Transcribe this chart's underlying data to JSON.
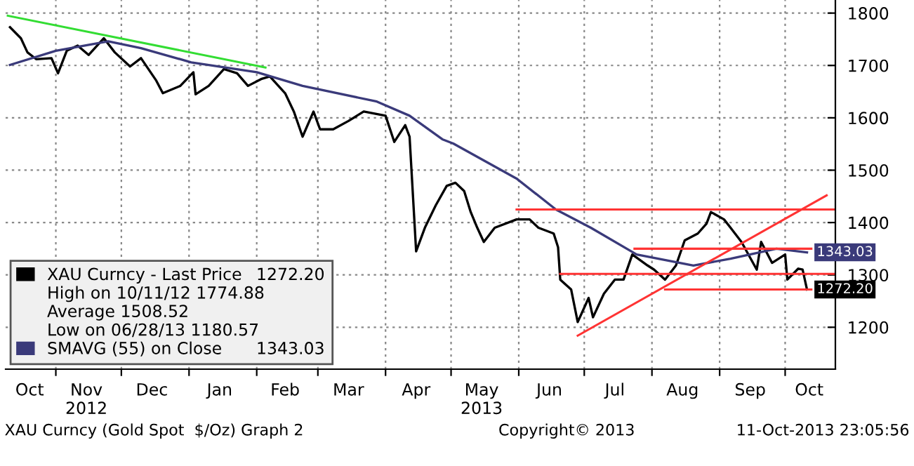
{
  "chart_data": {
    "type": "line",
    "xlim": [
      "2012-10-09",
      "2013-10-24"
    ],
    "ylim": [
      1120,
      1825
    ],
    "yticks": [
      1200,
      1300,
      1400,
      1500,
      1600,
      1700,
      1800
    ],
    "xticks": [
      {
        "value": "2012-10-20",
        "label": "Oct"
      },
      {
        "value": "2012-11-01",
        "label": null
      },
      {
        "value": "2012-11-15",
        "label": "Nov\n2012"
      },
      {
        "value": "2012-12-01",
        "label": null
      },
      {
        "value": "2012-12-15",
        "label": "Dec"
      },
      {
        "value": "2013-01-01",
        "label": null
      },
      {
        "value": "2013-01-15",
        "label": "Jan"
      },
      {
        "value": "2013-02-01",
        "label": null
      },
      {
        "value": "2013-02-14",
        "label": "Feb"
      },
      {
        "value": "2013-03-01",
        "label": null
      },
      {
        "value": "2013-03-15",
        "label": "Mar"
      },
      {
        "value": "2013-04-01",
        "label": null
      },
      {
        "value": "2013-04-15",
        "label": "Apr"
      },
      {
        "value": "2013-05-01",
        "label": null
      },
      {
        "value": "2013-05-15",
        "label": "May\n2013"
      },
      {
        "value": "2013-06-01",
        "label": null
      },
      {
        "value": "2013-06-15",
        "label": "Jun"
      },
      {
        "value": "2013-07-01",
        "label": null
      },
      {
        "value": "2013-07-15",
        "label": "Jul"
      },
      {
        "value": "2013-08-01",
        "label": null
      },
      {
        "value": "2013-08-15",
        "label": "Aug"
      },
      {
        "value": "2013-09-01",
        "label": null
      },
      {
        "value": "2013-09-15",
        "label": "Sep"
      },
      {
        "value": "2013-10-01",
        "label": null
      },
      {
        "value": "2013-10-12",
        "label": "Oct"
      }
    ],
    "grid": true,
    "legend": "bottom left",
    "marker": "none",
    "line_style": "solid",
    "series": [
      {
        "name": "XAU Curncy - Last Price",
        "color": "#000000",
        "x": [
          "2012-10-11",
          "2012-10-16",
          "2012-10-19",
          "2012-10-23",
          "2012-10-30",
          "2012-11-02",
          "2012-11-06",
          "2012-11-11",
          "2012-11-16",
          "2012-11-23",
          "2012-11-28",
          "2012-12-05",
          "2012-12-10",
          "2012-12-17",
          "2012-12-20",
          "2012-12-28",
          "2013-01-03",
          "2013-01-04",
          "2013-01-10",
          "2013-01-17",
          "2013-01-23",
          "2013-01-28",
          "2013-02-03",
          "2013-02-07",
          "2013-02-14",
          "2013-02-18",
          "2013-02-22",
          "2013-02-27",
          "2013-03-02",
          "2013-03-08",
          "2013-03-15",
          "2013-03-22",
          "2013-04-01",
          "2013-04-05",
          "2013-04-10",
          "2013-04-12",
          "2013-04-15",
          "2013-04-19",
          "2013-04-24",
          "2013-04-29",
          "2013-05-03",
          "2013-05-07",
          "2013-05-10",
          "2013-05-13",
          "2013-05-16",
          "2013-05-21",
          "2013-05-31",
          "2013-06-06",
          "2013-06-10",
          "2013-06-17",
          "2013-06-19",
          "2013-06-20",
          "2013-06-25",
          "2013-06-28",
          "2013-07-03",
          "2013-07-05",
          "2013-07-10",
          "2013-07-15",
          "2013-07-19",
          "2013-07-23",
          "2013-07-30",
          "2013-08-02",
          "2013-08-07",
          "2013-08-12",
          "2013-08-16",
          "2013-08-22",
          "2013-08-26",
          "2013-08-28",
          "2013-09-03",
          "2013-09-06",
          "2013-09-11",
          "2013-09-18",
          "2013-09-20",
          "2013-09-25",
          "2013-10-01",
          "2013-10-02",
          "2013-10-07",
          "2013-10-09",
          "2013-10-11"
        ],
        "values": [
          1773,
          1752,
          1725,
          1712,
          1714,
          1685,
          1728,
          1738,
          1720,
          1752,
          1725,
          1698,
          1714,
          1671,
          1647,
          1661,
          1687,
          1645,
          1661,
          1693,
          1685,
          1661,
          1674,
          1679,
          1647,
          1612,
          1564,
          1612,
          1578,
          1578,
          1594,
          1612,
          1604,
          1554,
          1586,
          1564,
          1345,
          1390,
          1433,
          1470,
          1476,
          1460,
          1420,
          1390,
          1363,
          1390,
          1406,
          1406,
          1390,
          1379,
          1353,
          1291,
          1272,
          1210,
          1256,
          1219,
          1264,
          1291,
          1291,
          1339,
          1318,
          1310,
          1291,
          1318,
          1366,
          1379,
          1398,
          1420,
          1406,
          1390,
          1363,
          1310,
          1363,
          1323,
          1339,
          1291,
          1312,
          1310,
          1272.2
        ],
        "value_labels": [
          null,
          null,
          null,
          null,
          null,
          null,
          null,
          null,
          null,
          null,
          null,
          null,
          null,
          null,
          null,
          null,
          null,
          null,
          null,
          null,
          null,
          null,
          null,
          null,
          null,
          null,
          null,
          null,
          null,
          null,
          null,
          null,
          null,
          null,
          null,
          null,
          null,
          null,
          null,
          null,
          null,
          null,
          null,
          null,
          null,
          null,
          null,
          null,
          null,
          null,
          null,
          null,
          null,
          null,
          null,
          null,
          null,
          null,
          null,
          null,
          null,
          null,
          null,
          null,
          null,
          null,
          null,
          null,
          null,
          null,
          null,
          null,
          null,
          null,
          null,
          null,
          null,
          null,
          "1272.20"
        ]
      },
      {
        "name": "SMAVG (55) on Close",
        "color": "#3a3a7a",
        "x": [
          "2012-10-11",
          "2012-11-01",
          "2012-11-25",
          "2012-12-10",
          "2013-01-02",
          "2013-02-01",
          "2013-02-22",
          "2013-03-28",
          "2013-04-12",
          "2013-04-27",
          "2013-05-02",
          "2013-05-31",
          "2013-06-18",
          "2013-07-04",
          "2013-07-25",
          "2013-08-20",
          "2013-09-06",
          "2013-09-27",
          "2013-10-11"
        ],
        "values": [
          1701,
          1728,
          1746,
          1733,
          1706,
          1687,
          1661,
          1631,
          1604,
          1559,
          1551,
          1484,
          1425,
          1390,
          1339,
          1318,
          1331,
          1350,
          1343.03
        ],
        "value_labels": [
          null,
          null,
          null,
          null,
          null,
          null,
          null,
          null,
          null,
          null,
          null,
          null,
          null,
          null,
          null,
          null,
          null,
          null,
          "1343.03"
        ]
      },
      {
        "color": "#33dd33",
        "x": [
          "2012-10-10",
          "2013-02-05"
        ],
        "values": [
          1795,
          1696
        ]
      },
      {
        "color": "#ff3333",
        "x": [
          "2013-06-28",
          "2013-10-20"
        ],
        "values": [
          1184,
          1452
        ]
      },
      {
        "color": "#ff3333",
        "x": [
          "2013-05-31",
          "2013-10-24"
        ],
        "values": [
          1425,
          1425
        ]
      },
      {
        "color": "#ff3333",
        "x": [
          "2013-07-24",
          "2013-10-13"
        ],
        "values": [
          1350,
          1350
        ]
      },
      {
        "color": "#ff3333",
        "x": [
          "2013-06-20",
          "2013-10-24"
        ],
        "values": [
          1302,
          1302
        ]
      },
      {
        "color": "#ff3333",
        "x": [
          "2013-08-07",
          "2013-10-13"
        ],
        "values": [
          1272,
          1272
        ]
      }
    ],
    "annotations": [
      "High on 10/11/12 1774.88",
      "Average 1508.52",
      "Low on 06/28/13 1180.57",
      "XAU Curncy (Gold Spot  $/Oz) Graph 2",
      "Copyright© 2013",
      "11-Oct-2013 23:05:56"
    ]
  }
}
